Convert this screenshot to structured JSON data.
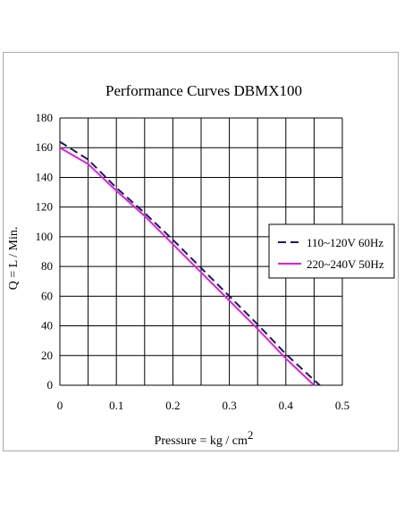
{
  "chart_data": {
    "type": "line",
    "title": "Performance  Curves  DBMX100",
    "xlabel": "Pressure = kg / cm",
    "xlabel_superscript": "2",
    "ylabel": "Q = L / Min.",
    "xlim": [
      0,
      0.5
    ],
    "ylim": [
      0,
      180
    ],
    "xticks": [
      "0",
      "0.1",
      "0.2",
      "0.3",
      "0.4",
      "0.5"
    ],
    "yticks": [
      "0",
      "20",
      "40",
      "60",
      "80",
      "100",
      "120",
      "140",
      "160",
      "180"
    ],
    "grid": true,
    "legend_position": "right",
    "series": [
      {
        "name": "110~120V 60Hz",
        "color": "#1a1a5e",
        "style": "dashed",
        "x": [
          0,
          0.05,
          0.1,
          0.15,
          0.2,
          0.25,
          0.3,
          0.35,
          0.4,
          0.46
        ],
        "y": [
          164,
          152,
          133,
          116,
          98,
          79,
          60,
          41,
          21,
          0
        ]
      },
      {
        "name": "220~240V 50Hz",
        "color": "#e11ee1",
        "style": "solid",
        "x": [
          0,
          0.05,
          0.1,
          0.15,
          0.2,
          0.25,
          0.3,
          0.35,
          0.4,
          0.45
        ],
        "y": [
          160,
          149,
          131,
          114,
          95,
          76,
          57,
          38,
          18,
          0
        ]
      }
    ]
  }
}
